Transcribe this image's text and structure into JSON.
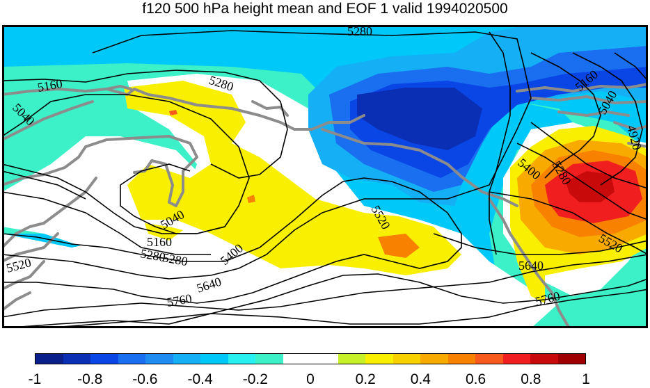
{
  "title": "f120 500 hPa height mean and EOF 1 valid 1994020500",
  "contour_labels": [
    "5280",
    "5280",
    "5160",
    "5040",
    "5040",
    "5280",
    "5160",
    "5280",
    "5400",
    "5520",
    "5520",
    "5640",
    "5760",
    "5400",
    "5280",
    "5160",
    "5040",
    "4920",
    "5520",
    "5640",
    "5760"
  ],
  "colorbar": {
    "colors": [
      "#0a1f8a",
      "#0a2fb4",
      "#0a46e6",
      "#1a6ef0",
      "#1e8cf0",
      "#14aff5",
      "#00c8f8",
      "#26f0f0",
      "#3cf0c8",
      "#ffffff",
      "#ffffff",
      "#c8f028",
      "#f8f000",
      "#f8d200",
      "#f8aa00",
      "#f88200",
      "#f85a1e",
      "#f01e1e",
      "#c80a0a",
      "#a00000"
    ],
    "tick_labels": [
      "-1",
      "-0.8",
      "-0.6",
      "-0.4",
      "-0.2",
      "0",
      "0.2",
      "0.4",
      "0.6",
      "0.8",
      "1"
    ]
  }
}
